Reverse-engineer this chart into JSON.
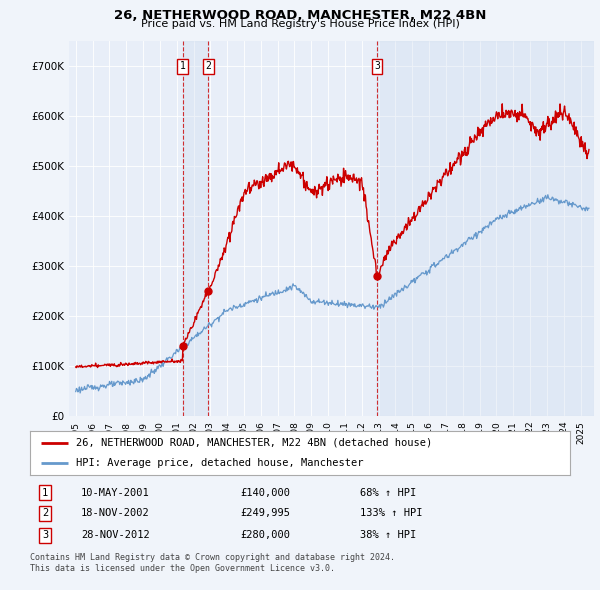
{
  "title": "26, NETHERWOOD ROAD, MANCHESTER, M22 4BN",
  "subtitle": "Price paid vs. HM Land Registry's House Price Index (HPI)",
  "background_color": "#f0f4fa",
  "plot_bg_color": "#e8eef8",
  "transactions": [
    {
      "date_num": 2001.36,
      "price": 140000,
      "label": "1",
      "date_str": "10-MAY-2001",
      "pct": "68%"
    },
    {
      "date_num": 2002.88,
      "price": 249995,
      "label": "2",
      "date_str": "18-NOV-2002",
      "pct": "133%"
    },
    {
      "date_num": 2012.91,
      "price": 280000,
      "label": "3",
      "date_str": "28-NOV-2012",
      "pct": "38%"
    }
  ],
  "legend_line1": "26, NETHERWOOD ROAD, MANCHESTER, M22 4BN (detached house)",
  "legend_line2": "HPI: Average price, detached house, Manchester",
  "footer1": "Contains HM Land Registry data © Crown copyright and database right 2024.",
  "footer2": "This data is licensed under the Open Government Licence v3.0.",
  "ylim": [
    0,
    750000
  ],
  "yticks": [
    0,
    100000,
    200000,
    300000,
    400000,
    500000,
    600000,
    700000
  ],
  "ytick_labels": [
    "£0",
    "£100K",
    "£200K",
    "£300K",
    "£400K",
    "£500K",
    "£600K",
    "£700K"
  ],
  "red_color": "#cc0000",
  "blue_color": "#6699cc",
  "shade_color": "#d0ddf0"
}
